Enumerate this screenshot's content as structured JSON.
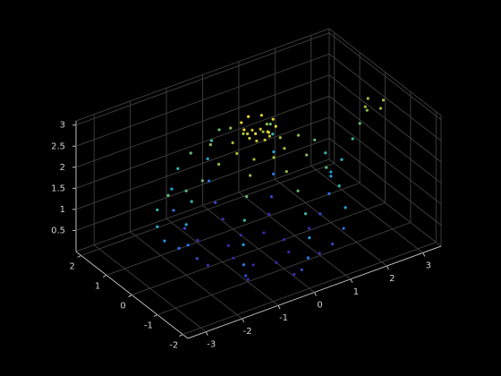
{
  "chart_data": {
    "type": "scatter3d",
    "x": [
      0.7,
      0.49,
      0,
      -0.49,
      -0.7,
      -0.49,
      0,
      0.49,
      1.4,
      0.99,
      0,
      -0.99,
      -1.4,
      -0.99,
      0,
      0.99,
      1.7,
      1.2,
      0,
      -1.2,
      -1.7,
      -1.2,
      0,
      1.2,
      1.95,
      1.38,
      0,
      -1.38,
      -1.95,
      -1.38,
      0,
      1.38,
      2.0,
      1.41,
      0,
      -1.41,
      -2.0,
      -1.41,
      0,
      1.41,
      1.85,
      1.31,
      0,
      -1.31,
      -1.85,
      -1.31,
      0,
      1.31,
      1.55,
      1.1,
      0,
      -1.1,
      -1.55,
      -1.1,
      0,
      1.1,
      1.1,
      0.78,
      0,
      -0.78,
      -1.1,
      -0.78,
      0,
      0.78,
      0.6,
      0.42,
      0,
      -0.42,
      -0.6,
      -0.42,
      0,
      0.42,
      0.25,
      0.18,
      0,
      -0.18,
      -0.25,
      -0.18,
      0,
      0.18,
      0.4,
      0.28,
      0,
      -0.28,
      -0.4,
      -0.28,
      0,
      0.28,
      2.0,
      2.3,
      2.6,
      2.8,
      3.0,
      3.2,
      3.2,
      3.45,
      2.95,
      -2.0,
      -2.5,
      -2.8,
      -2.8,
      -2.6,
      -2.2
    ],
    "y": [
      0,
      0.49,
      0.7,
      0.49,
      0,
      -0.49,
      -0.7,
      -0.49,
      0,
      0.99,
      1.4,
      0.99,
      0,
      -0.99,
      -1.4,
      -0.99,
      0,
      1.2,
      1.7,
      1.2,
      0,
      -1.2,
      -1.7,
      -1.2,
      0,
      1.38,
      1.95,
      1.38,
      0,
      -1.38,
      -1.95,
      -1.38,
      0,
      1.41,
      2.0,
      1.41,
      0,
      -1.41,
      -2.0,
      -1.41,
      0,
      1.31,
      1.85,
      1.31,
      0,
      -1.31,
      -1.85,
      -1.31,
      0,
      1.1,
      1.55,
      1.1,
      0,
      -1.1,
      -1.55,
      -1.1,
      0,
      0.78,
      1.1,
      0.78,
      0,
      -0.78,
      -1.1,
      -0.78,
      0,
      0.42,
      0.6,
      0.42,
      0,
      -0.42,
      -0.6,
      -0.42,
      0,
      0.18,
      0.25,
      0.18,
      0,
      -0.18,
      -0.25,
      -0.18,
      0,
      0.28,
      0.4,
      0.28,
      0,
      -0.28,
      -0.4,
      -0.28,
      0,
      0,
      0,
      0,
      0,
      0.25,
      -0.25,
      0,
      0,
      0,
      0,
      0,
      0,
      0,
      0
    ],
    "z": [
      0,
      0,
      0,
      0,
      0,
      0,
      0,
      0,
      0.05,
      0.05,
      0.05,
      0.05,
      0.05,
      0.05,
      0.05,
      0.05,
      0.3,
      0.3,
      0.3,
      0.3,
      0.3,
      0.3,
      0.3,
      0.3,
      0.7,
      0.7,
      0.7,
      0.7,
      0.7,
      0.7,
      0.7,
      0.7,
      1.2,
      1.2,
      1.2,
      1.2,
      1.2,
      1.2,
      1.2,
      1.2,
      1.7,
      1.7,
      1.7,
      1.7,
      1.7,
      1.7,
      1.7,
      1.7,
      2.1,
      2.1,
      2.1,
      2.1,
      2.1,
      2.1,
      2.1,
      2.1,
      2.35,
      2.35,
      2.35,
      2.35,
      2.35,
      2.35,
      2.35,
      2.35,
      2.45,
      2.45,
      2.45,
      2.45,
      2.45,
      2.45,
      2.45,
      2.45,
      2.7,
      2.7,
      2.7,
      2.7,
      2.7,
      2.7,
      2.7,
      2.7,
      2.95,
      2.95,
      2.95,
      2.95,
      2.95,
      2.95,
      2.95,
      2.95,
      1.1,
      1.4,
      1.8,
      2.1,
      2.35,
      2.45,
      2.45,
      2.45,
      2.45,
      2.0,
      2.05,
      1.8,
      1.4,
      1.0,
      0.7
    ],
    "colormap": [
      "#3e26a8",
      "#2f6cf0",
      "#1ea9d6",
      "#3cbc9b",
      "#a9bd33",
      "#f9d92d"
    ],
    "xlim": [
      -3.5,
      3.5
    ],
    "ylim": [
      -2.2,
      2.2
    ],
    "zlim": [
      0,
      3.1
    ],
    "xticks": [
      -3,
      -2,
      -1,
      0,
      1,
      2,
      3
    ],
    "yticks": [
      -2,
      -1,
      0,
      1,
      2
    ],
    "zticks": [
      0.5,
      1,
      1.5,
      2,
      2.5,
      3
    ],
    "grid": true
  }
}
